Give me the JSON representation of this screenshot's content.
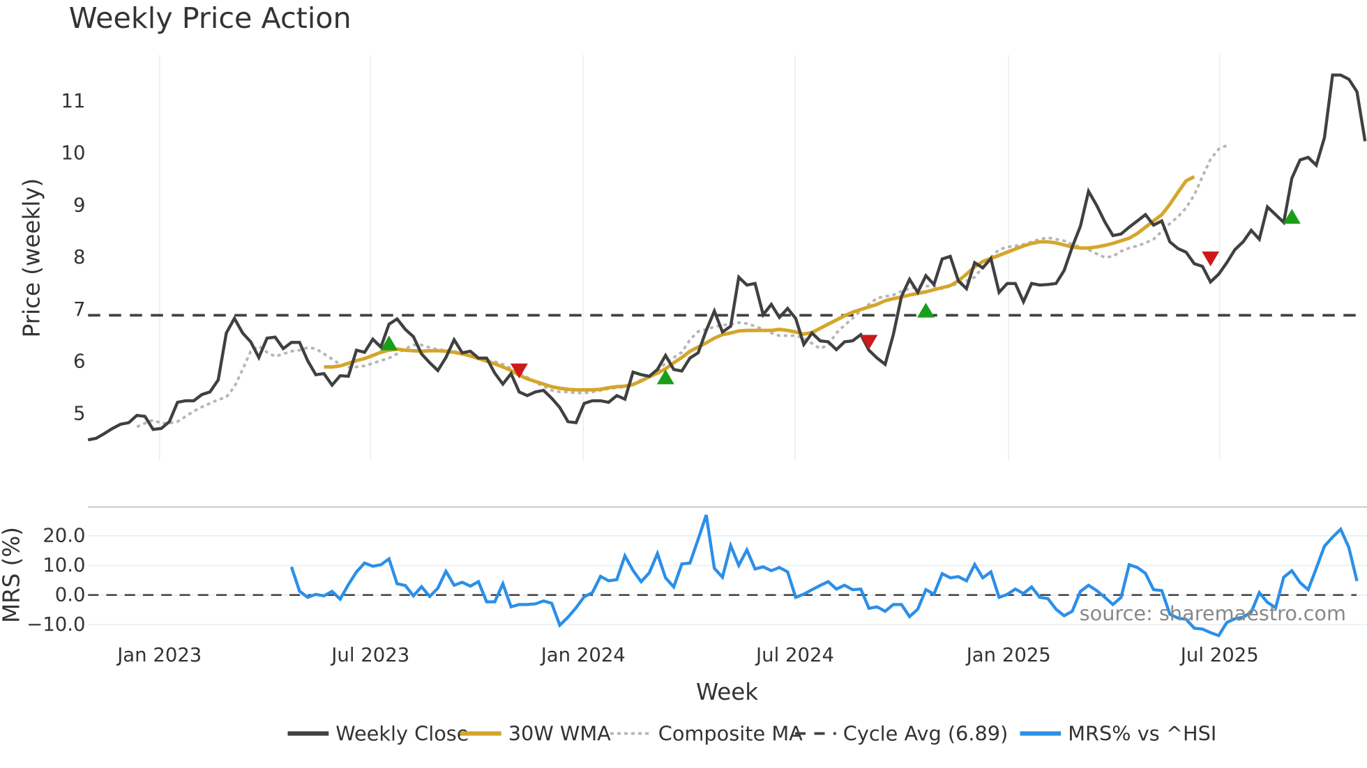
{
  "title": "Weekly Price Action",
  "watermark": "source: sharemaestro.com",
  "colors": {
    "weekly_close": "#404040",
    "wma": "#d4a62a",
    "composite": "#b5b5b5",
    "cycle_avg": "#404040",
    "mrs": "#2b8fe8",
    "buy": "#1a9e1a",
    "sell": "#cc1a1a",
    "grid": "#eceff3"
  },
  "legend": [
    {
      "label": "Weekly Close",
      "style": "solid",
      "color": "#404040"
    },
    {
      "label": "30W WMA",
      "style": "solid",
      "color": "#d4a62a"
    },
    {
      "label": "Composite MA",
      "style": "dotted",
      "color": "#b5b5b5"
    },
    {
      "label": "Cycle Avg (6.89)",
      "style": "dashed",
      "color": "#404040"
    },
    {
      "label": "MRS% vs ^HSI",
      "style": "solid",
      "color": "#2b8fe8"
    }
  ],
  "chart_data": [
    {
      "type": "line",
      "title": "Weekly Price Action",
      "xlabel": "Week",
      "ylabel": "Price (weekly)",
      "x_ticks": [
        "Jan 2023",
        "Jul 2023",
        "Jan 2024",
        "Jul 2024",
        "Jan 2025",
        "Jul 2025"
      ],
      "y_ticks": [
        5,
        6,
        7,
        8,
        9,
        10,
        11
      ],
      "ylim": [
        4.3,
        11.9
      ],
      "grid": "vertical",
      "cycle_avg": 6.89,
      "series": [
        {
          "name": "Weekly Close",
          "start_week_index": 0,
          "values": [
            4.5,
            4.53,
            4.62,
            4.72,
            4.8,
            4.83,
            4.97,
            4.95,
            4.7,
            4.72,
            4.85,
            5.22,
            5.25,
            5.25,
            5.37,
            5.42,
            5.65,
            6.55,
            6.83,
            6.55,
            6.38,
            6.08,
            6.45,
            6.47,
            6.25,
            6.37,
            6.37,
            6.02,
            5.75,
            5.77,
            5.55,
            5.73,
            5.72,
            6.22,
            6.18,
            6.43,
            6.28,
            6.72,
            6.82,
            6.62,
            6.48,
            6.15,
            5.98,
            5.83,
            6.08,
            6.42,
            6.17,
            6.2,
            6.07,
            6.07,
            5.78,
            5.57,
            5.77,
            5.42,
            5.35,
            5.42,
            5.45,
            5.3,
            5.12,
            4.85,
            4.83,
            5.2,
            5.25,
            5.25,
            5.22,
            5.35,
            5.28,
            5.8,
            5.75,
            5.72,
            5.85,
            6.12,
            5.85,
            5.82,
            6.07,
            6.17,
            6.6,
            6.97,
            6.57,
            6.68,
            7.62,
            7.47,
            7.5,
            6.9,
            7.1,
            6.85,
            7.02,
            6.83,
            6.33,
            6.55,
            6.4,
            6.38,
            6.23,
            6.38,
            6.4,
            6.52,
            6.22,
            6.07,
            5.95,
            6.52,
            7.25,
            7.58,
            7.33,
            7.65,
            7.48,
            7.97,
            8.02,
            7.55,
            7.4,
            7.9,
            7.8,
            7.98,
            7.33,
            7.5,
            7.5,
            7.15,
            7.5,
            7.47,
            7.48,
            7.5,
            7.75,
            8.2,
            8.6,
            9.27,
            9.0,
            8.68,
            8.42,
            8.45,
            8.58,
            8.7,
            8.82,
            8.62,
            8.7,
            8.3,
            8.17,
            8.1,
            7.88,
            7.83,
            7.53,
            7.68,
            7.9,
            8.15,
            8.3,
            8.52,
            8.35,
            8.97,
            8.82,
            8.67,
            9.52,
            9.87,
            9.92,
            9.77,
            10.3,
            11.5,
            11.5,
            11.42,
            11.18,
            10.23
          ]
        },
        {
          "name": "30W WMA",
          "start_week_index": 29,
          "values": [
            5.9,
            5.9,
            5.92,
            5.97,
            6.02,
            6.06,
            6.12,
            6.18,
            6.22,
            6.24,
            6.22,
            6.21,
            6.2,
            6.21,
            6.21,
            6.2,
            6.18,
            6.15,
            6.11,
            6.06,
            6.01,
            5.96,
            5.9,
            5.83,
            5.74,
            5.67,
            5.62,
            5.57,
            5.52,
            5.49,
            5.47,
            5.46,
            5.46,
            5.46,
            5.47,
            5.5,
            5.52,
            5.53,
            5.56,
            5.63,
            5.71,
            5.78,
            5.86,
            5.98,
            6.08,
            6.2,
            6.28,
            6.36,
            6.45,
            6.52,
            6.55,
            6.59,
            6.6,
            6.6,
            6.6,
            6.6,
            6.62,
            6.6,
            6.57,
            6.53,
            6.56,
            6.64,
            6.72,
            6.8,
            6.88,
            6.95,
            7.0,
            7.05,
            7.1,
            7.17,
            7.21,
            7.24,
            7.28,
            7.31,
            7.34,
            7.38,
            7.42,
            7.46,
            7.55,
            7.68,
            7.82,
            7.92,
            7.98,
            8.04,
            8.1,
            8.16,
            8.22,
            8.27,
            8.3,
            8.3,
            8.28,
            8.24,
            8.2,
            8.18,
            8.18,
            8.2,
            8.23,
            8.27,
            8.32,
            8.37,
            8.46,
            8.58,
            8.7,
            8.82,
            9.02,
            9.25,
            9.47,
            9.55
          ]
        },
        {
          "name": "Composite MA",
          "start_week_index": 6,
          "values": [
            4.75,
            4.82,
            4.88,
            4.82,
            4.82,
            4.85,
            4.95,
            5.05,
            5.13,
            5.2,
            5.27,
            5.32,
            5.52,
            5.85,
            6.2,
            6.3,
            6.18,
            6.1,
            6.15,
            6.2,
            6.22,
            6.27,
            6.25,
            6.15,
            6.05,
            5.95,
            5.9,
            5.9,
            5.92,
            5.97,
            6.02,
            6.07,
            6.15,
            6.25,
            6.32,
            6.32,
            6.27,
            6.23,
            6.22,
            6.2,
            6.15,
            6.12,
            6.08,
            6.03,
            6.0,
            5.95,
            5.87,
            5.78,
            5.7,
            5.6,
            5.53,
            5.45,
            5.42,
            5.42,
            5.4,
            5.4,
            5.42,
            5.45,
            5.48,
            5.5,
            5.52,
            5.57,
            5.65,
            5.72,
            5.82,
            5.97,
            6.08,
            6.18,
            6.42,
            6.58,
            6.62,
            6.67,
            6.7,
            6.72,
            6.75,
            6.73,
            6.68,
            6.62,
            6.55,
            6.5,
            6.5,
            6.5,
            6.45,
            6.35,
            6.25,
            6.32,
            6.55,
            6.7,
            6.83,
            6.98,
            7.1,
            7.22,
            7.25,
            7.28,
            7.35,
            7.4,
            7.45,
            7.45,
            7.45,
            7.4,
            7.45,
            7.5,
            7.55,
            7.62,
            7.82,
            8.0,
            8.15,
            8.2,
            8.22,
            8.25,
            8.3,
            8.35,
            8.38,
            8.35,
            8.32,
            8.25,
            8.2,
            8.15,
            8.07,
            8.0,
            8.02,
            8.12,
            8.18,
            8.22,
            8.28,
            8.35,
            8.5,
            8.65,
            8.78,
            8.95,
            9.2,
            9.55,
            9.88,
            10.08,
            10.15
          ]
        },
        {
          "name": "Cycle Avg (6.89)",
          "values": [
            6.89
          ]
        }
      ],
      "markers": {
        "buy": [
          {
            "week": 37,
            "value": 6.35
          },
          {
            "week": 71,
            "value": 5.7
          },
          {
            "week": 103,
            "value": 6.98
          },
          {
            "week": 148,
            "value": 8.78
          }
        ],
        "sell": [
          {
            "week": 53,
            "value": 5.83
          },
          {
            "week": 96,
            "value": 6.38
          },
          {
            "week": 138,
            "value": 7.98
          }
        ]
      }
    },
    {
      "type": "line",
      "ylabel": "MRS (%)",
      "y_ticks": [
        -10.0,
        0.0,
        10.0,
        20.0
      ],
      "ylim": [
        -15,
        28
      ],
      "zero_line": 0.0,
      "series": [
        {
          "name": "MRS% vs ^HSI",
          "start_week_index": 25,
          "values": [
            9.5,
            1.3,
            -0.8,
            0.2,
            -0.3,
            1.2,
            -1.4,
            3.5,
            7.8,
            10.8,
            9.7,
            10.2,
            12.2,
            3.8,
            3.2,
            -0.3,
            2.8,
            -0.5,
            2.3,
            8.0,
            3.3,
            4.3,
            3.0,
            4.5,
            -2.3,
            -2.3,
            3.8,
            -4.0,
            -3.2,
            -3.2,
            -3.0,
            -2.0,
            -2.8,
            -10.2,
            -7.5,
            -4.3,
            -0.6,
            0.8,
            6.3,
            4.8,
            5.2,
            13.2,
            8.3,
            4.5,
            7.5,
            14.0,
            5.8,
            2.7,
            10.5,
            10.8,
            18.8,
            27.0,
            9.0,
            6.0,
            16.7,
            10.0,
            15.2,
            8.8,
            9.5,
            8.2,
            9.3,
            7.8,
            -0.8,
            0.3,
            1.8,
            3.2,
            4.5,
            2.0,
            3.3,
            1.8,
            2.0,
            -4.5,
            -4.0,
            -5.5,
            -3.2,
            -3.2,
            -7.3,
            -4.8,
            1.8,
            0.3,
            7.2,
            5.8,
            6.2,
            4.8,
            10.3,
            5.8,
            7.8,
            -0.8,
            0.2,
            2.0,
            0.5,
            2.7,
            -0.8,
            -1.2,
            -4.8,
            -7.0,
            -5.5,
            1.2,
            3.3,
            1.5,
            -0.8,
            -3.2,
            -0.8,
            10.2,
            9.3,
            7.3,
            1.8,
            1.5,
            -6.5,
            -7.8,
            -8.2,
            -11.2,
            -11.5,
            -12.7,
            -13.7,
            -9.3,
            -8.0,
            -7.5,
            -5.8,
            0.8,
            -2.5,
            -4.3,
            6.0,
            8.2,
            4.2,
            1.8,
            9.0,
            16.5,
            19.5,
            22.2,
            16.0,
            4.7
          ]
        }
      ]
    }
  ],
  "x_axis": {
    "label": "Week",
    "ticks": [
      "Jan 2023",
      "Jul 2023",
      "Jan 2024",
      "Jul 2024",
      "Jan 2025",
      "Jul 2025"
    ]
  },
  "price_axis": {
    "label": "Price (weekly)",
    "ticks": [
      "11",
      "10",
      "9",
      "8",
      "7",
      "6",
      "5"
    ]
  },
  "mrs_axis": {
    "label": "MRS (%)",
    "ticks": [
      "20.0",
      "10.0",
      "0.0",
      "−10.0"
    ]
  }
}
